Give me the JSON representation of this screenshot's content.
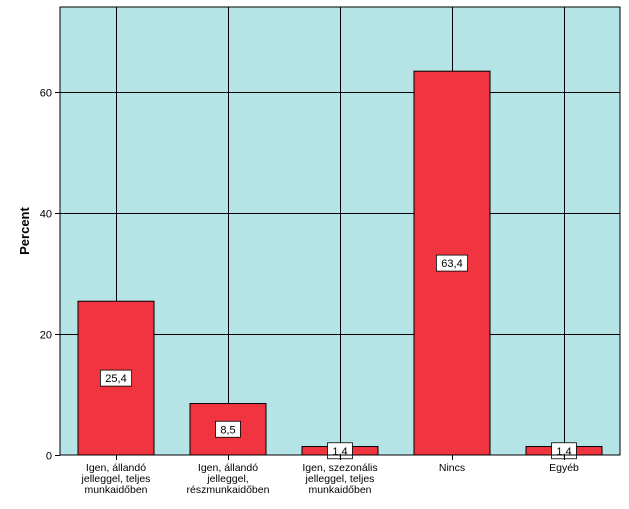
{
  "chart_data": {
    "type": "bar",
    "title": "",
    "xlabel": "",
    "ylabel": "Percent",
    "ylim": [
      0,
      74
    ],
    "yticks": [
      0,
      20,
      40,
      60
    ],
    "grid": true,
    "categories": [
      [
        "Igen, állandó",
        "jelleggel, teljes",
        "munkaidőben"
      ],
      [
        "Igen, állandó",
        "jelleggel,",
        "részmunkaidőben"
      ],
      [
        "Igen, szezonális",
        "jelleggel, teljes",
        "munkaidőben"
      ],
      [
        "Nincs"
      ],
      [
        "Egyéb"
      ]
    ],
    "values": [
      25.4,
      8.5,
      1.4,
      63.4,
      1.4
    ],
    "value_labels": [
      "25,4",
      "8,5",
      "1,4",
      "63,4",
      "1,4"
    ],
    "colors": {
      "plot_background": "#b5e4e6",
      "bar_fill": "#f03540",
      "bar_stroke": "#000000",
      "grid": "#000000"
    }
  }
}
